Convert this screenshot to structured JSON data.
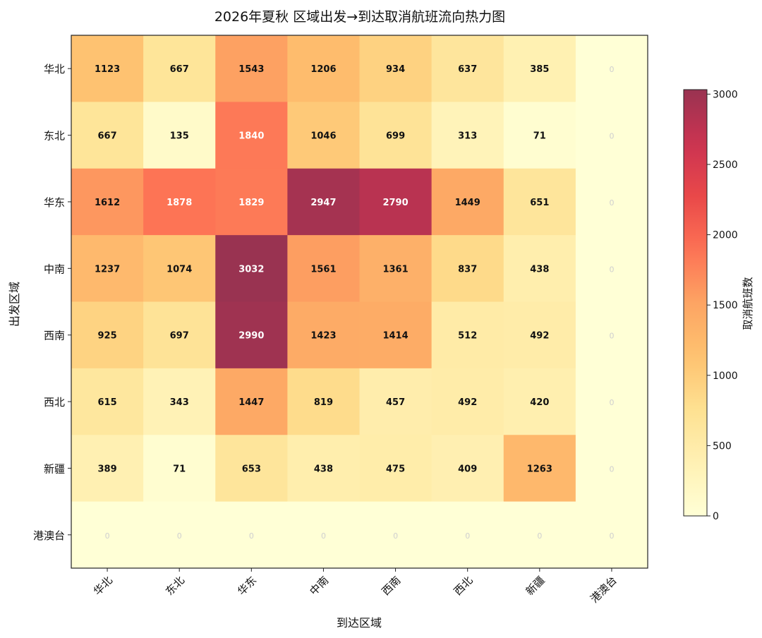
{
  "chart_data": {
    "type": "heatmap",
    "title": "2026年夏秋 区域出发→到达取消航班流向热力图",
    "xlabel": "到达区域",
    "ylabel": "出发区域",
    "colorbar_label": "取消航班数",
    "x_categories": [
      "华北",
      "东北",
      "华东",
      "中南",
      "西南",
      "西北",
      "新疆",
      "港澳台"
    ],
    "y_categories": [
      "华北",
      "东北",
      "华东",
      "中南",
      "西南",
      "西北",
      "新疆",
      "港澳台"
    ],
    "values": [
      [
        1123,
        667,
        1543,
        1206,
        934,
        637,
        385,
        0
      ],
      [
        667,
        135,
        1840,
        1046,
        699,
        313,
        71,
        0
      ],
      [
        1612,
        1878,
        1829,
        2947,
        2790,
        1449,
        651,
        0
      ],
      [
        1237,
        1074,
        3032,
        1561,
        1361,
        837,
        438,
        0
      ],
      [
        925,
        697,
        2990,
        1423,
        1414,
        512,
        492,
        0
      ],
      [
        615,
        343,
        1447,
        819,
        457,
        492,
        420,
        0
      ],
      [
        389,
        71,
        653,
        438,
        475,
        409,
        1263,
        0
      ],
      [
        0,
        0,
        0,
        0,
        0,
        0,
        0,
        0
      ]
    ],
    "color_range": [
      0,
      3032
    ],
    "colormap": "YlOrRd",
    "colorbar_ticks": [
      0,
      500,
      1000,
      1500,
      2000,
      2500,
      3000
    ],
    "colorbar_tick_labels": [
      "0",
      "500",
      "1000",
      "1500",
      "2000",
      "2500",
      "3000"
    ],
    "grid": false,
    "legend": "colorbar-right"
  }
}
